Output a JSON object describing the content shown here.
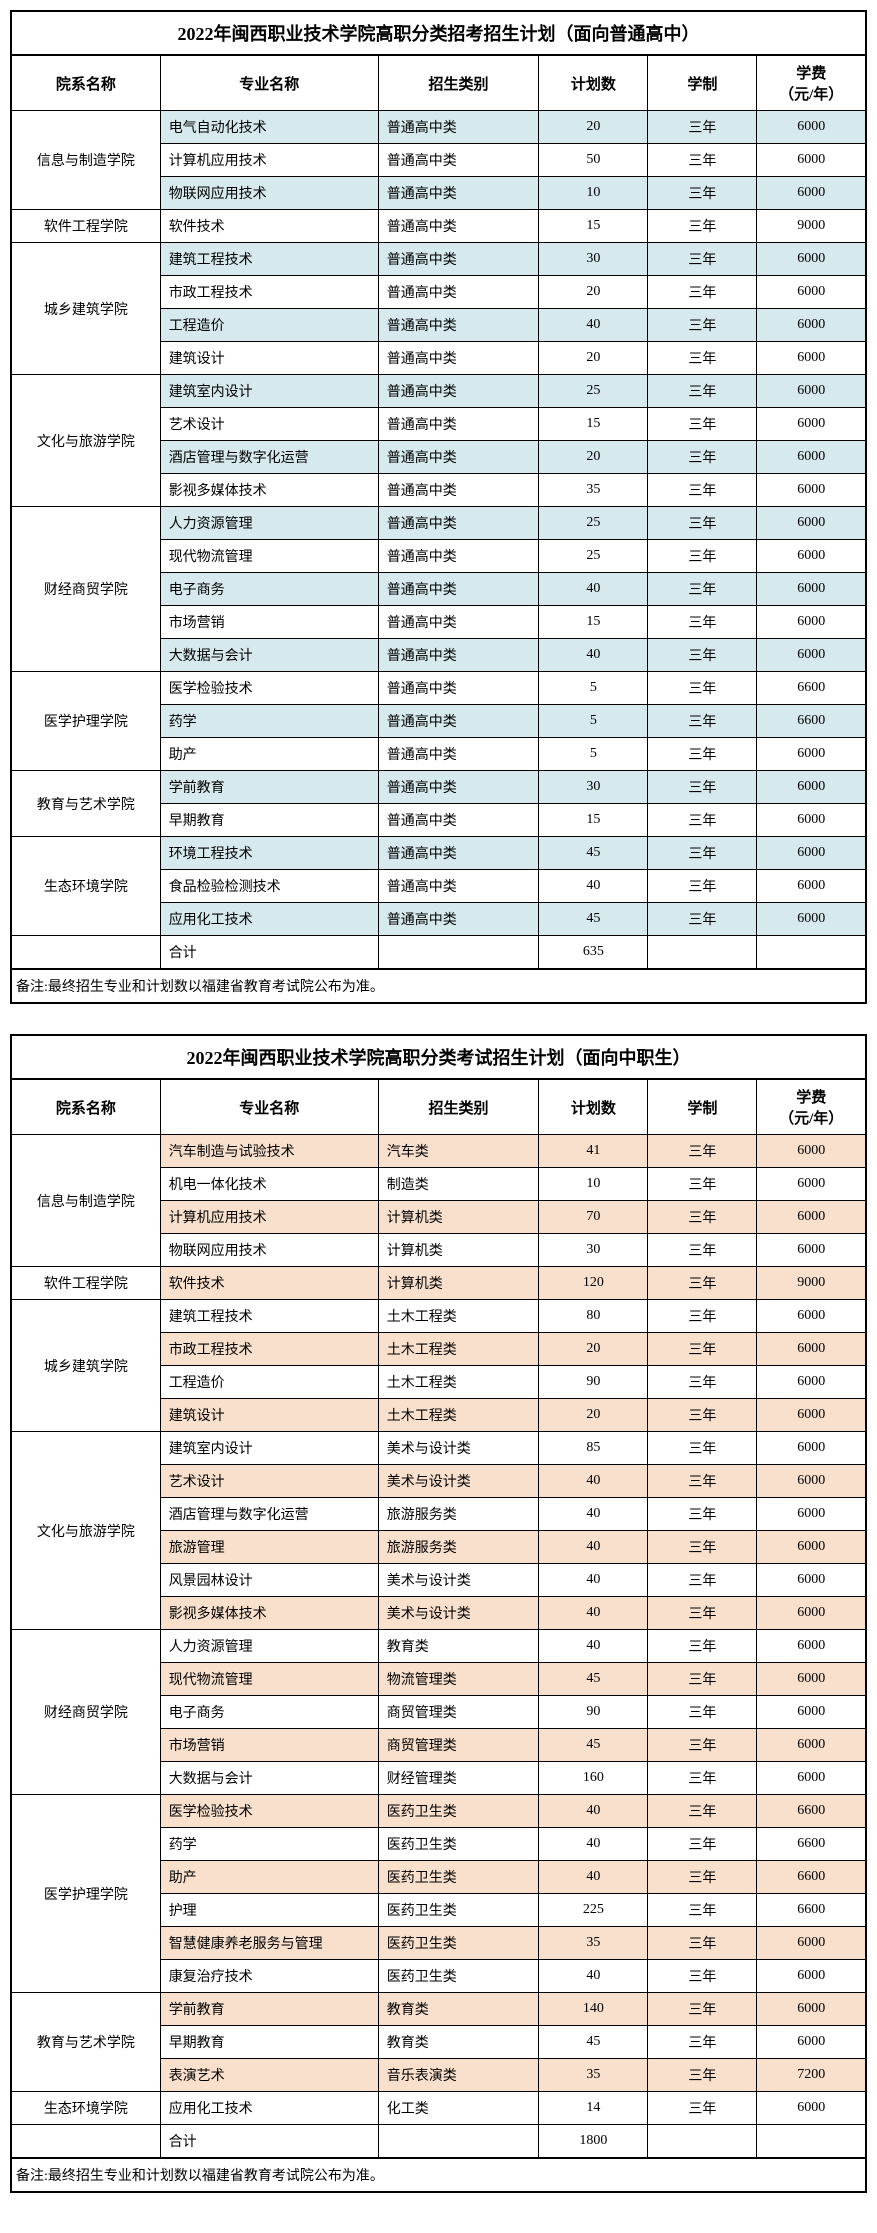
{
  "colors": {
    "blue_highlight": "#d6e9ed",
    "orange_highlight": "#f8e0cd",
    "border": "#000000",
    "background": "#ffffff"
  },
  "tables": [
    {
      "title": "2022年闽西职业技术学院高职分类招考招生计划（面向普通高中）",
      "highlight_class": "hl-blue",
      "headers": [
        "院系名称",
        "专业名称",
        "招生类别",
        "计划数",
        "学制",
        "学费\n（元/年）"
      ],
      "departments": [
        {
          "name": "信息与制造学院",
          "rows": [
            {
              "major": "电气自动化技术",
              "cat": "普通高中类",
              "plan": "20",
              "dur": "三年",
              "fee": "6000",
              "hl": true
            },
            {
              "major": "计算机应用技术",
              "cat": "普通高中类",
              "plan": "50",
              "dur": "三年",
              "fee": "6000",
              "hl": false
            },
            {
              "major": "物联网应用技术",
              "cat": "普通高中类",
              "plan": "10",
              "dur": "三年",
              "fee": "6000",
              "hl": true
            }
          ]
        },
        {
          "name": "软件工程学院",
          "rows": [
            {
              "major": "软件技术",
              "cat": "普通高中类",
              "plan": "15",
              "dur": "三年",
              "fee": "9000",
              "hl": false
            }
          ]
        },
        {
          "name": "城乡建筑学院",
          "rows": [
            {
              "major": "建筑工程技术",
              "cat": "普通高中类",
              "plan": "30",
              "dur": "三年",
              "fee": "6000",
              "hl": true
            },
            {
              "major": "市政工程技术",
              "cat": "普通高中类",
              "plan": "20",
              "dur": "三年",
              "fee": "6000",
              "hl": false
            },
            {
              "major": "工程造价",
              "cat": "普通高中类",
              "plan": "40",
              "dur": "三年",
              "fee": "6000",
              "hl": true
            },
            {
              "major": "建筑设计",
              "cat": "普通高中类",
              "plan": "20",
              "dur": "三年",
              "fee": "6000",
              "hl": false
            }
          ]
        },
        {
          "name": "文化与旅游学院",
          "rows": [
            {
              "major": "建筑室内设计",
              "cat": "普通高中类",
              "plan": "25",
              "dur": "三年",
              "fee": "6000",
              "hl": true
            },
            {
              "major": "艺术设计",
              "cat": "普通高中类",
              "plan": "15",
              "dur": "三年",
              "fee": "6000",
              "hl": false
            },
            {
              "major": "酒店管理与数字化运营",
              "cat": "普通高中类",
              "plan": "20",
              "dur": "三年",
              "fee": "6000",
              "hl": true
            },
            {
              "major": "影视多媒体技术",
              "cat": "普通高中类",
              "plan": "35",
              "dur": "三年",
              "fee": "6000",
              "hl": false
            }
          ]
        },
        {
          "name": "财经商贸学院",
          "rows": [
            {
              "major": "人力资源管理",
              "cat": "普通高中类",
              "plan": "25",
              "dur": "三年",
              "fee": "6000",
              "hl": true
            },
            {
              "major": "现代物流管理",
              "cat": "普通高中类",
              "plan": "25",
              "dur": "三年",
              "fee": "6000",
              "hl": false
            },
            {
              "major": "电子商务",
              "cat": "普通高中类",
              "plan": "40",
              "dur": "三年",
              "fee": "6000",
              "hl": true
            },
            {
              "major": "市场营销",
              "cat": "普通高中类",
              "plan": "15",
              "dur": "三年",
              "fee": "6000",
              "hl": false
            },
            {
              "major": "大数据与会计",
              "cat": "普通高中类",
              "plan": "40",
              "dur": "三年",
              "fee": "6000",
              "hl": true
            }
          ]
        },
        {
          "name": "医学护理学院",
          "rows": [
            {
              "major": "医学检验技术",
              "cat": "普通高中类",
              "plan": "5",
              "dur": "三年",
              "fee": "6600",
              "hl": false
            },
            {
              "major": "药学",
              "cat": "普通高中类",
              "plan": "5",
              "dur": "三年",
              "fee": "6600",
              "hl": true
            },
            {
              "major": "助产",
              "cat": "普通高中类",
              "plan": "5",
              "dur": "三年",
              "fee": "6000",
              "hl": false
            }
          ]
        },
        {
          "name": "教育与艺术学院",
          "rows": [
            {
              "major": "学前教育",
              "cat": "普通高中类",
              "plan": "30",
              "dur": "三年",
              "fee": "6000",
              "hl": true
            },
            {
              "major": "早期教育",
              "cat": "普通高中类",
              "plan": "15",
              "dur": "三年",
              "fee": "6000",
              "hl": false
            }
          ]
        },
        {
          "name": "生态环境学院",
          "rows": [
            {
              "major": "环境工程技术",
              "cat": "普通高中类",
              "plan": "45",
              "dur": "三年",
              "fee": "6000",
              "hl": true
            },
            {
              "major": "食品检验检测技术",
              "cat": "普通高中类",
              "plan": "40",
              "dur": "三年",
              "fee": "6000",
              "hl": false
            },
            {
              "major": "应用化工技术",
              "cat": "普通高中类",
              "plan": "45",
              "dur": "三年",
              "fee": "6000",
              "hl": true
            }
          ]
        }
      ],
      "total_label": "合计",
      "total_plan": "635",
      "footnote": "备注:最终招生专业和计划数以福建省教育考试院公布为准。"
    },
    {
      "title": "2022年闽西职业技术学院高职分类考试招生计划（面向中职生）",
      "highlight_class": "hl-orange",
      "headers": [
        "院系名称",
        "专业名称",
        "招生类别",
        "计划数",
        "学制",
        "学费\n（元/年）"
      ],
      "departments": [
        {
          "name": "信息与制造学院",
          "rows": [
            {
              "major": "汽车制造与试验技术",
              "cat": "汽车类",
              "plan": "41",
              "dur": "三年",
              "fee": "6000",
              "hl": true
            },
            {
              "major": "机电一体化技术",
              "cat": "制造类",
              "plan": "10",
              "dur": "三年",
              "fee": "6000",
              "hl": false
            },
            {
              "major": "计算机应用技术",
              "cat": "计算机类",
              "plan": "70",
              "dur": "三年",
              "fee": "6000",
              "hl": true
            },
            {
              "major": "物联网应用技术",
              "cat": "计算机类",
              "plan": "30",
              "dur": "三年",
              "fee": "6000",
              "hl": false
            }
          ]
        },
        {
          "name": "软件工程学院",
          "rows": [
            {
              "major": "软件技术",
              "cat": "计算机类",
              "plan": "120",
              "dur": "三年",
              "fee": "9000",
              "hl": true
            }
          ]
        },
        {
          "name": "城乡建筑学院",
          "rows": [
            {
              "major": "建筑工程技术",
              "cat": "土木工程类",
              "plan": "80",
              "dur": "三年",
              "fee": "6000",
              "hl": false
            },
            {
              "major": "市政工程技术",
              "cat": "土木工程类",
              "plan": "20",
              "dur": "三年",
              "fee": "6000",
              "hl": true
            },
            {
              "major": "工程造价",
              "cat": "土木工程类",
              "plan": "90",
              "dur": "三年",
              "fee": "6000",
              "hl": false
            },
            {
              "major": "建筑设计",
              "cat": "土木工程类",
              "plan": "20",
              "dur": "三年",
              "fee": "6000",
              "hl": true
            }
          ]
        },
        {
          "name": "文化与旅游学院",
          "rows": [
            {
              "major": "建筑室内设计",
              "cat": "美术与设计类",
              "plan": "85",
              "dur": "三年",
              "fee": "6000",
              "hl": false
            },
            {
              "major": "艺术设计",
              "cat": "美术与设计类",
              "plan": "40",
              "dur": "三年",
              "fee": "6000",
              "hl": true
            },
            {
              "major": "酒店管理与数字化运营",
              "cat": "旅游服务类",
              "plan": "40",
              "dur": "三年",
              "fee": "6000",
              "hl": false
            },
            {
              "major": "旅游管理",
              "cat": "旅游服务类",
              "plan": "40",
              "dur": "三年",
              "fee": "6000",
              "hl": true
            },
            {
              "major": "风景园林设计",
              "cat": "美术与设计类",
              "plan": "40",
              "dur": "三年",
              "fee": "6000",
              "hl": false
            },
            {
              "major": "影视多媒体技术",
              "cat": "美术与设计类",
              "plan": "40",
              "dur": "三年",
              "fee": "6000",
              "hl": true
            }
          ]
        },
        {
          "name": "财经商贸学院",
          "rows": [
            {
              "major": "人力资源管理",
              "cat": "教育类",
              "plan": "40",
              "dur": "三年",
              "fee": "6000",
              "hl": false
            },
            {
              "major": "现代物流管理",
              "cat": "物流管理类",
              "plan": "45",
              "dur": "三年",
              "fee": "6000",
              "hl": true
            },
            {
              "major": "电子商务",
              "cat": "商贸管理类",
              "plan": "90",
              "dur": "三年",
              "fee": "6000",
              "hl": false
            },
            {
              "major": "市场营销",
              "cat": "商贸管理类",
              "plan": "45",
              "dur": "三年",
              "fee": "6000",
              "hl": true
            },
            {
              "major": "大数据与会计",
              "cat": "财经管理类",
              "plan": "160",
              "dur": "三年",
              "fee": "6000",
              "hl": false
            }
          ]
        },
        {
          "name": "医学护理学院",
          "rows": [
            {
              "major": "医学检验技术",
              "cat": "医药卫生类",
              "plan": "40",
              "dur": "三年",
              "fee": "6600",
              "hl": true
            },
            {
              "major": "药学",
              "cat": "医药卫生类",
              "plan": "40",
              "dur": "三年",
              "fee": "6600",
              "hl": false
            },
            {
              "major": "助产",
              "cat": "医药卫生类",
              "plan": "40",
              "dur": "三年",
              "fee": "6600",
              "hl": true
            },
            {
              "major": "护理",
              "cat": "医药卫生类",
              "plan": "225",
              "dur": "三年",
              "fee": "6600",
              "hl": false
            },
            {
              "major": "智慧健康养老服务与管理",
              "cat": "医药卫生类",
              "plan": "35",
              "dur": "三年",
              "fee": "6000",
              "hl": true
            },
            {
              "major": "康复治疗技术",
              "cat": "医药卫生类",
              "plan": "40",
              "dur": "三年",
              "fee": "6000",
              "hl": false
            }
          ]
        },
        {
          "name": "教育与艺术学院",
          "rows": [
            {
              "major": "学前教育",
              "cat": "教育类",
              "plan": "140",
              "dur": "三年",
              "fee": "6000",
              "hl": true
            },
            {
              "major": "早期教育",
              "cat": "教育类",
              "plan": "45",
              "dur": "三年",
              "fee": "6000",
              "hl": false
            },
            {
              "major": "表演艺术",
              "cat": "音乐表演类",
              "plan": "35",
              "dur": "三年",
              "fee": "7200",
              "hl": true
            }
          ]
        },
        {
          "name": "生态环境学院",
          "rows": [
            {
              "major": "应用化工技术",
              "cat": "化工类",
              "plan": "14",
              "dur": "三年",
              "fee": "6000",
              "hl": false
            }
          ]
        }
      ],
      "total_label": "合计",
      "total_plan": "1800",
      "footnote": "备注:最终招生专业和计划数以福建省教育考试院公布为准。"
    }
  ]
}
